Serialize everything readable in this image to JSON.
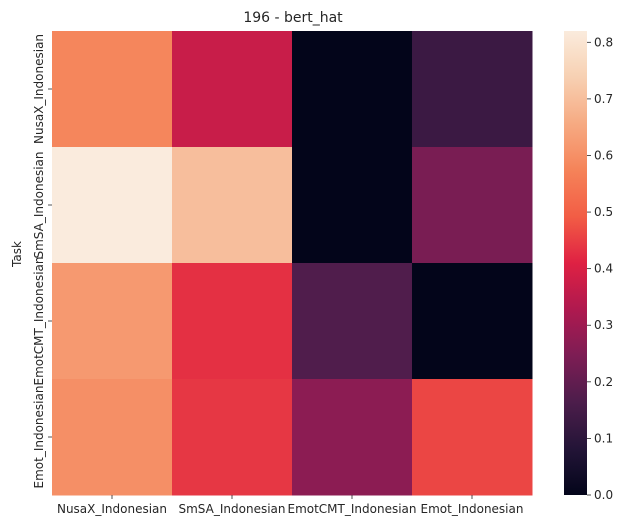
{
  "chart_data": {
    "type": "heatmap",
    "title": "196 - bert_hat",
    "xlabel": "",
    "ylabel": "Task",
    "x_categories": [
      "NusaX_Indonesian",
      "SmSA_Indonesian",
      "EmotCMT_Indonesian",
      "Emot_Indonesian"
    ],
    "y_categories": [
      "NusaX_Indonesian",
      "SmSA_Indonesian",
      "EmotCMT_Indonesian",
      "Emot_Indonesian"
    ],
    "values": [
      [
        0.58,
        0.37,
        0.0,
        0.13
      ],
      [
        0.82,
        0.7,
        0.0,
        0.24
      ],
      [
        0.62,
        0.43,
        0.17,
        0.0
      ],
      [
        0.6,
        0.44,
        0.27,
        0.46
      ]
    ],
    "colorbar": {
      "min": 0.0,
      "max": 0.82,
      "ticks": [
        "0.0",
        "0.1",
        "0.2",
        "0.3",
        "0.4",
        "0.5",
        "0.6",
        "0.7",
        "0.8"
      ],
      "colormap": "rocket"
    }
  }
}
